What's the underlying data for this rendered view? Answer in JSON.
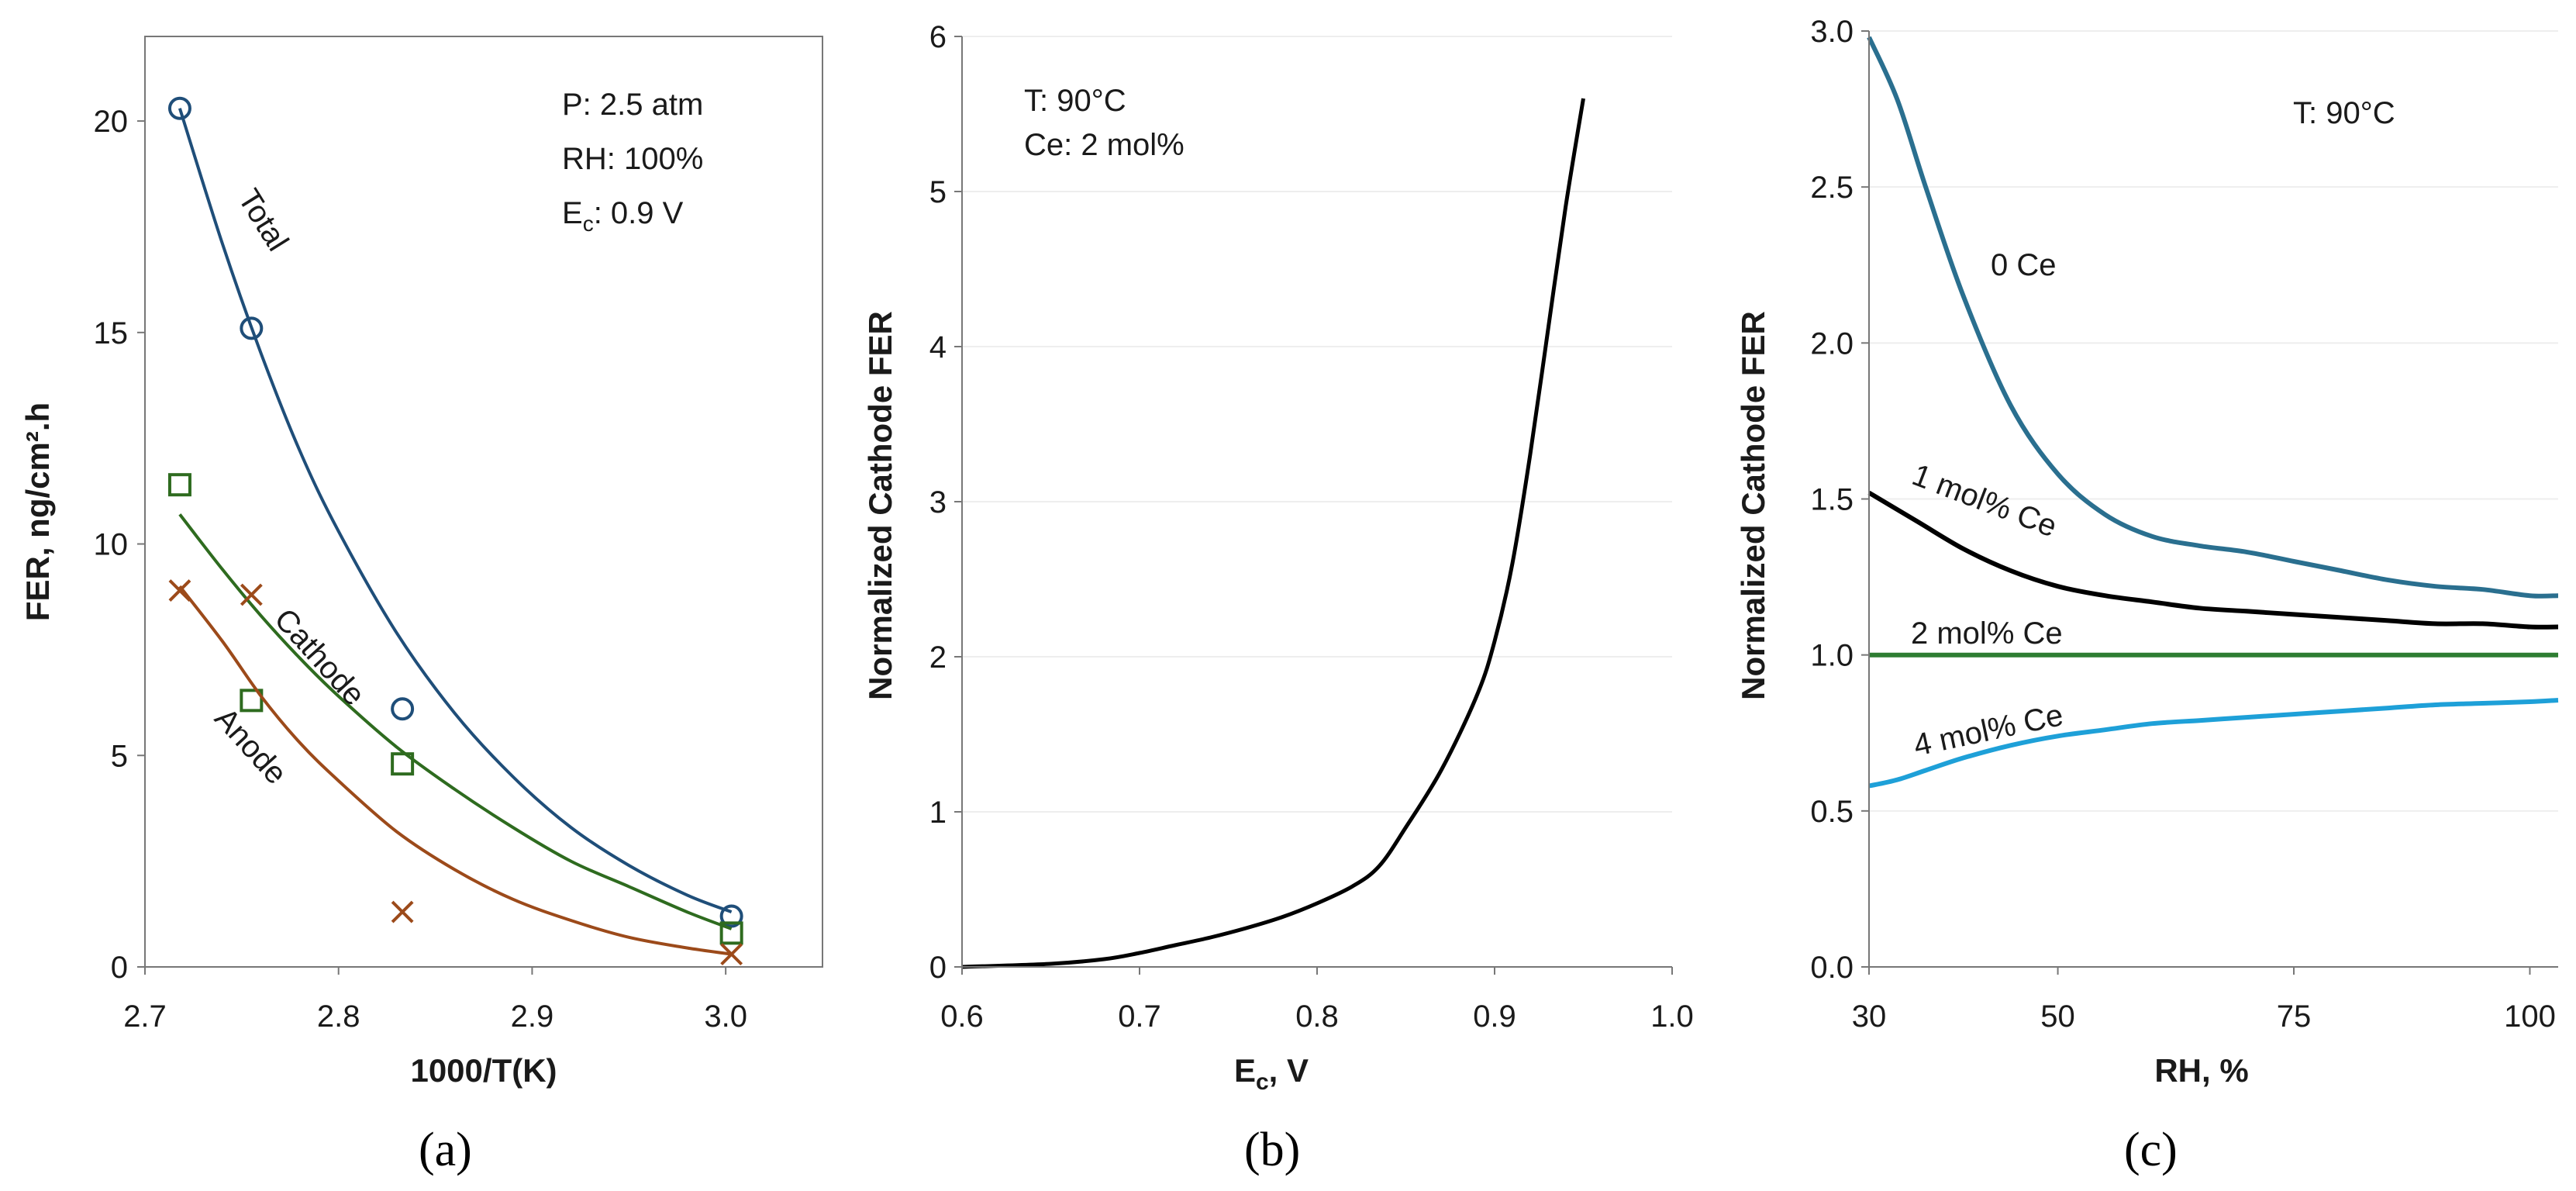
{
  "colors": {
    "total": "#1f4e79",
    "cathode": "#2e6b1f",
    "anode": "#9c4a1a",
    "black": "#000000",
    "ce0": "#2a6f8f",
    "ce1": "#000000",
    "ce2": "#2e7d32",
    "ce4": "#1ea0d8",
    "grid": "#eeeeee",
    "axis": "#777777"
  },
  "chart_data": [
    {
      "panel": "a",
      "panel_label": "(a)",
      "type": "scatter",
      "xlabel": "1000/T(K)",
      "ylabel": "FER, ng/cm².h",
      "xlim": [
        2.7,
        3.05
      ],
      "ylim": [
        0,
        22
      ],
      "xticks": [
        "2.7",
        "2.8",
        "2.9",
        "3.0"
      ],
      "yticks": [
        "0",
        "5",
        "10",
        "15",
        "20"
      ],
      "xtick_values": [
        2.7,
        2.8,
        2.9,
        3.0
      ],
      "ytick_values": [
        0,
        5,
        10,
        15,
        20
      ],
      "grid": false,
      "annotations": [
        "P: 2.5 atm",
        "RH: 100%",
        "E",
        "c",
        ": 0.9 V"
      ],
      "series": [
        {
          "name": "Total",
          "marker": "circle",
          "color_key": "total",
          "points": [
            [
              2.718,
              20.3
            ],
            [
              2.755,
              15.1
            ],
            [
              2.833,
              6.1
            ],
            [
              3.003,
              1.2
            ]
          ],
          "fit": [
            [
              2.718,
              20.3
            ],
            [
              2.74,
              17.1
            ],
            [
              2.76,
              14.5
            ],
            [
              2.78,
              12.2
            ],
            [
              2.8,
              10.3
            ],
            [
              2.83,
              7.9
            ],
            [
              2.86,
              6.0
            ],
            [
              2.89,
              4.5
            ],
            [
              2.92,
              3.3
            ],
            [
              2.95,
              2.4
            ],
            [
              2.98,
              1.7
            ],
            [
              3.003,
              1.3
            ]
          ]
        },
        {
          "name": "Cathode",
          "marker": "square",
          "color_key": "cathode",
          "points": [
            [
              2.718,
              11.4
            ],
            [
              2.755,
              6.3
            ],
            [
              2.833,
              4.8
            ],
            [
              3.003,
              0.8
            ]
          ],
          "fit": [
            [
              2.718,
              10.7
            ],
            [
              2.74,
              9.4
            ],
            [
              2.76,
              8.3
            ],
            [
              2.78,
              7.3
            ],
            [
              2.8,
              6.4
            ],
            [
              2.83,
              5.2
            ],
            [
              2.86,
              4.2
            ],
            [
              2.89,
              3.3
            ],
            [
              2.92,
              2.5
            ],
            [
              2.95,
              1.9
            ],
            [
              2.98,
              1.3
            ],
            [
              3.003,
              0.9
            ]
          ]
        },
        {
          "name": "Anode",
          "marker": "x",
          "color_key": "anode",
          "points": [
            [
              2.718,
              8.9
            ],
            [
              2.755,
              8.8
            ],
            [
              2.833,
              1.3
            ],
            [
              3.003,
              0.3
            ]
          ],
          "fit": [
            [
              2.718,
              9.0
            ],
            [
              2.74,
              7.7
            ],
            [
              2.76,
              6.4
            ],
            [
              2.78,
              5.3
            ],
            [
              2.8,
              4.4
            ],
            [
              2.83,
              3.2
            ],
            [
              2.86,
              2.3
            ],
            [
              2.89,
              1.6
            ],
            [
              2.92,
              1.1
            ],
            [
              2.95,
              0.7
            ],
            [
              2.98,
              0.45
            ],
            [
              3.003,
              0.3
            ]
          ]
        }
      ]
    },
    {
      "panel": "b",
      "panel_label": "(b)",
      "type": "line",
      "xlabel_main": "E",
      "xlabel_sub": "c",
      "xlabel_tail": ", V",
      "ylabel": "Normalized Cathode FER",
      "xlim": [
        0.6,
        1.0
      ],
      "ylim": [
        0,
        6
      ],
      "xticks": [
        "0.6",
        "0.7",
        "0.8",
        "0.9",
        "1.0"
      ],
      "yticks": [
        "0",
        "1",
        "2",
        "3",
        "4",
        "5",
        "6"
      ],
      "xtick_values": [
        0.6,
        0.7,
        0.8,
        0.9,
        1.0
      ],
      "ytick_values": [
        0,
        1,
        2,
        3,
        4,
        5,
        6
      ],
      "grid": true,
      "annotations": [
        "T: 90°C",
        "Ce: 2 mol%"
      ],
      "series": [
        {
          "color_key": "black",
          "points": [
            [
              0.6,
              0.0
            ],
            [
              0.65,
              0.02
            ],
            [
              0.68,
              0.05
            ],
            [
              0.7,
              0.09
            ],
            [
              0.72,
              0.14
            ],
            [
              0.74,
              0.19
            ],
            [
              0.76,
              0.25
            ],
            [
              0.78,
              0.32
            ],
            [
              0.8,
              0.41
            ],
            [
              0.82,
              0.52
            ],
            [
              0.835,
              0.65
            ],
            [
              0.85,
              0.9
            ],
            [
              0.87,
              1.27
            ],
            [
              0.89,
              1.75
            ],
            [
              0.9,
              2.1
            ],
            [
              0.91,
              2.6
            ],
            [
              0.92,
              3.3
            ],
            [
              0.93,
              4.1
            ],
            [
              0.94,
              4.9
            ],
            [
              0.95,
              5.6
            ]
          ]
        }
      ]
    },
    {
      "panel": "c",
      "panel_label": "(c)",
      "type": "line",
      "xlabel": "RH, %",
      "ylabel": "Normalized Cathode FER",
      "xlim": [
        30,
        103
      ],
      "ylim": [
        0,
        3.0
      ],
      "xticks": [
        "30",
        "50",
        "75",
        "100"
      ],
      "yticks": [
        "0.0",
        "0.5",
        "1.0",
        "1.5",
        "2.0",
        "2.5",
        "3.0"
      ],
      "xtick_values": [
        30,
        50,
        75,
        100
      ],
      "ytick_values": [
        0,
        0.5,
        1.0,
        1.5,
        2.0,
        2.5,
        3.0
      ],
      "grid": true,
      "annotations": [
        "T: 90°C"
      ],
      "series": [
        {
          "name": "0 Ce",
          "color_key": "ce0",
          "points": [
            [
              30,
              2.98
            ],
            [
              33,
              2.78
            ],
            [
              36,
              2.5
            ],
            [
              40,
              2.15
            ],
            [
              45,
              1.8
            ],
            [
              50,
              1.58
            ],
            [
              55,
              1.45
            ],
            [
              60,
              1.38
            ],
            [
              65,
              1.35
            ],
            [
              70,
              1.33
            ],
            [
              75,
              1.3
            ],
            [
              80,
              1.27
            ],
            [
              85,
              1.24
            ],
            [
              90,
              1.22
            ],
            [
              95,
              1.21
            ],
            [
              100,
              1.19
            ],
            [
              103,
              1.19
            ]
          ]
        },
        {
          "name": "1 mol% Ce",
          "color_key": "ce1",
          "points": [
            [
              30,
              1.52
            ],
            [
              35,
              1.43
            ],
            [
              40,
              1.34
            ],
            [
              45,
              1.27
            ],
            [
              50,
              1.22
            ],
            [
              55,
              1.19
            ],
            [
              60,
              1.17
            ],
            [
              65,
              1.15
            ],
            [
              70,
              1.14
            ],
            [
              75,
              1.13
            ],
            [
              80,
              1.12
            ],
            [
              85,
              1.11
            ],
            [
              90,
              1.1
            ],
            [
              95,
              1.1
            ],
            [
              100,
              1.09
            ],
            [
              103,
              1.09
            ]
          ]
        },
        {
          "name": "2 mol% Ce",
          "color_key": "ce2",
          "points": [
            [
              30,
              1.0
            ],
            [
              103,
              1.0
            ]
          ]
        },
        {
          "name": "4 mol% Ce",
          "color_key": "ce4",
          "points": [
            [
              30,
              0.58
            ],
            [
              33,
              0.6
            ],
            [
              36,
              0.63
            ],
            [
              40,
              0.67
            ],
            [
              45,
              0.71
            ],
            [
              50,
              0.74
            ],
            [
              55,
              0.76
            ],
            [
              60,
              0.78
            ],
            [
              65,
              0.79
            ],
            [
              70,
              0.8
            ],
            [
              75,
              0.81
            ],
            [
              80,
              0.82
            ],
            [
              85,
              0.83
            ],
            [
              90,
              0.84
            ],
            [
              95,
              0.845
            ],
            [
              100,
              0.85
            ],
            [
              103,
              0.855
            ]
          ]
        }
      ]
    }
  ]
}
